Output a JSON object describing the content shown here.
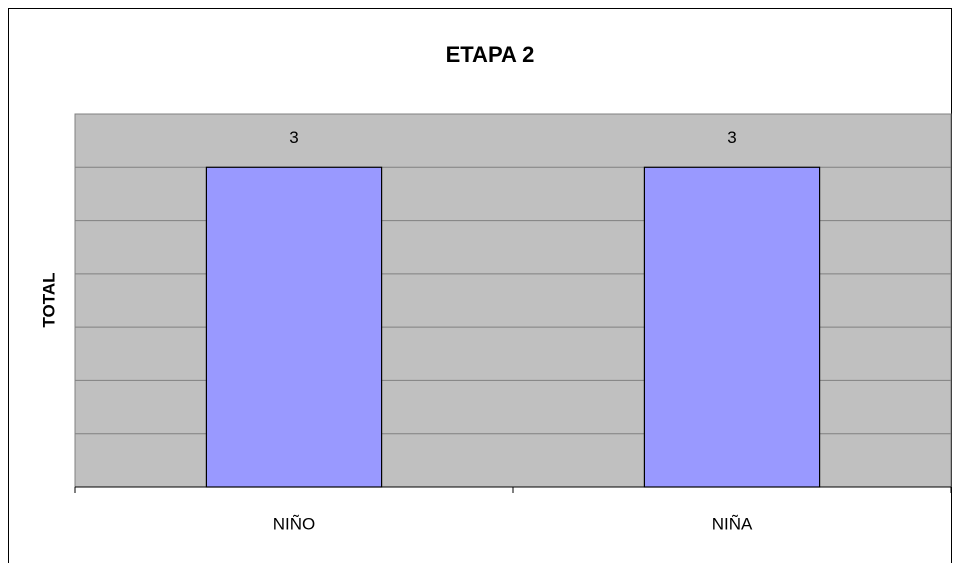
{
  "chart_data": {
    "type": "bar",
    "title": "ETAPA 2",
    "y_label": "TOTAL",
    "categories": [
      "NIÑO",
      "NIÑA"
    ],
    "values": [
      3,
      3
    ],
    "color": "#9999ff",
    "ylim": [
      0,
      3.5
    ],
    "yticks": [
      0,
      0.5,
      1,
      1.5,
      2,
      2.5,
      3,
      3.5
    ],
    "grid": true
  }
}
